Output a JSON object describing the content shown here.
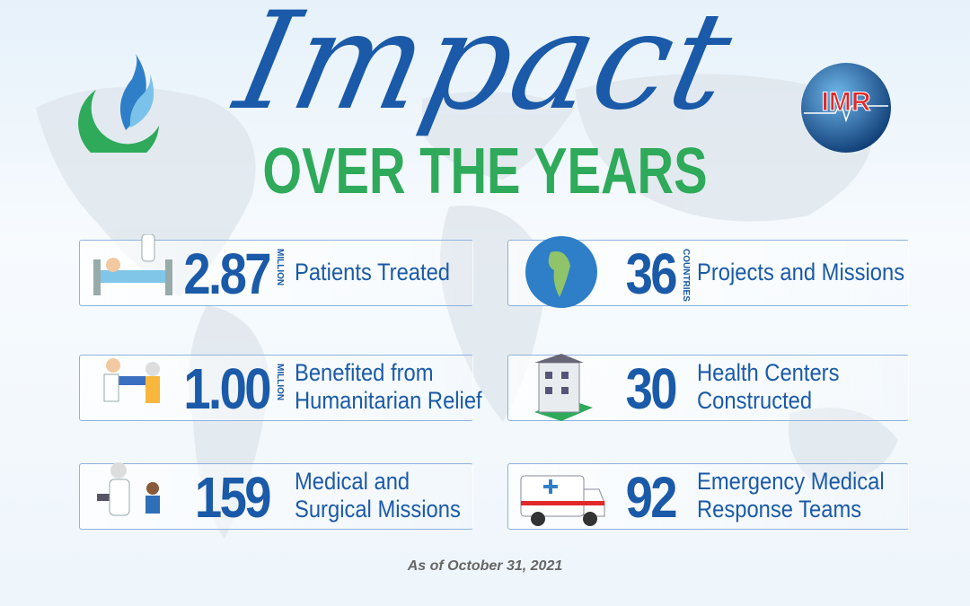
{
  "header": {
    "title": "Impact",
    "subtitle": "OVER THE YEARS",
    "logo_right": "IMR"
  },
  "stats": [
    {
      "number": "2.87",
      "unit": "MILLION",
      "label": [
        "Patients Treated"
      ]
    },
    {
      "number": "36",
      "unit": "COUNTRIES",
      "label": [
        "Projects and Missions"
      ]
    },
    {
      "number": "1.00",
      "unit": "MILLION",
      "label": [
        "Benefited from",
        "Humanitarian Relief"
      ]
    },
    {
      "number": "30",
      "label": [
        "Health Centers",
        "Constructed"
      ]
    },
    {
      "number": "159",
      "label": [
        "Medical and",
        "Surgical Missions"
      ]
    },
    {
      "number": "92",
      "label": [
        "Emergency Medical",
        "Response Teams"
      ]
    }
  ],
  "footer": {
    "note": "As of October 31, 2021"
  }
}
